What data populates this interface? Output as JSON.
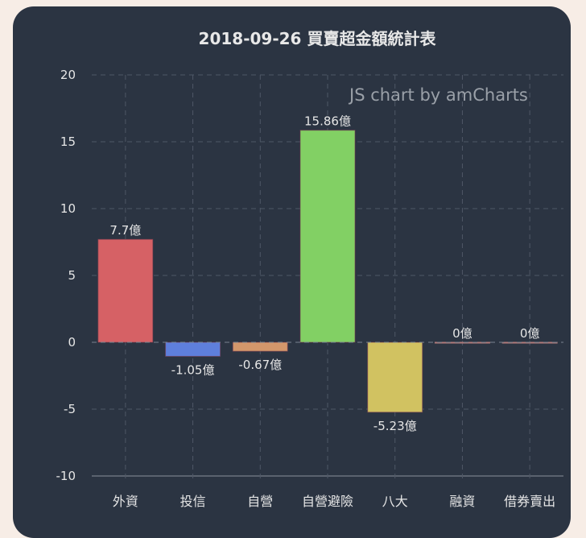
{
  "page": {
    "background": "#f7ede6",
    "card_background": "#2b3442"
  },
  "chart_data": {
    "type": "bar",
    "title": "2018-09-26 買賣超金額統計表",
    "xlabel": "",
    "ylabel": "",
    "ylim": [
      -10,
      20
    ],
    "yticks": [
      20,
      15,
      10,
      5,
      0,
      -5,
      -10
    ],
    "grid": true,
    "legend": "none",
    "categories": [
      "外資",
      "投信",
      "自營",
      "自營避險",
      "八大",
      "融資",
      "借券賣出"
    ],
    "values": [
      7.7,
      -1.05,
      -0.67,
      15.86,
      -5.23,
      0,
      0
    ],
    "value_labels": [
      "7.7億",
      "-1.05億",
      "-0.67億",
      "15.86億",
      "-5.23億",
      "0億",
      "0億"
    ],
    "colors": [
      "#d66165",
      "#5e7fdc",
      "#d3976b",
      "#82d064",
      "#d1c261",
      "#b07a7a",
      "#b07a7a"
    ],
    "unit": "億"
  },
  "watermark": {
    "text": "JS chart by amCharts"
  }
}
